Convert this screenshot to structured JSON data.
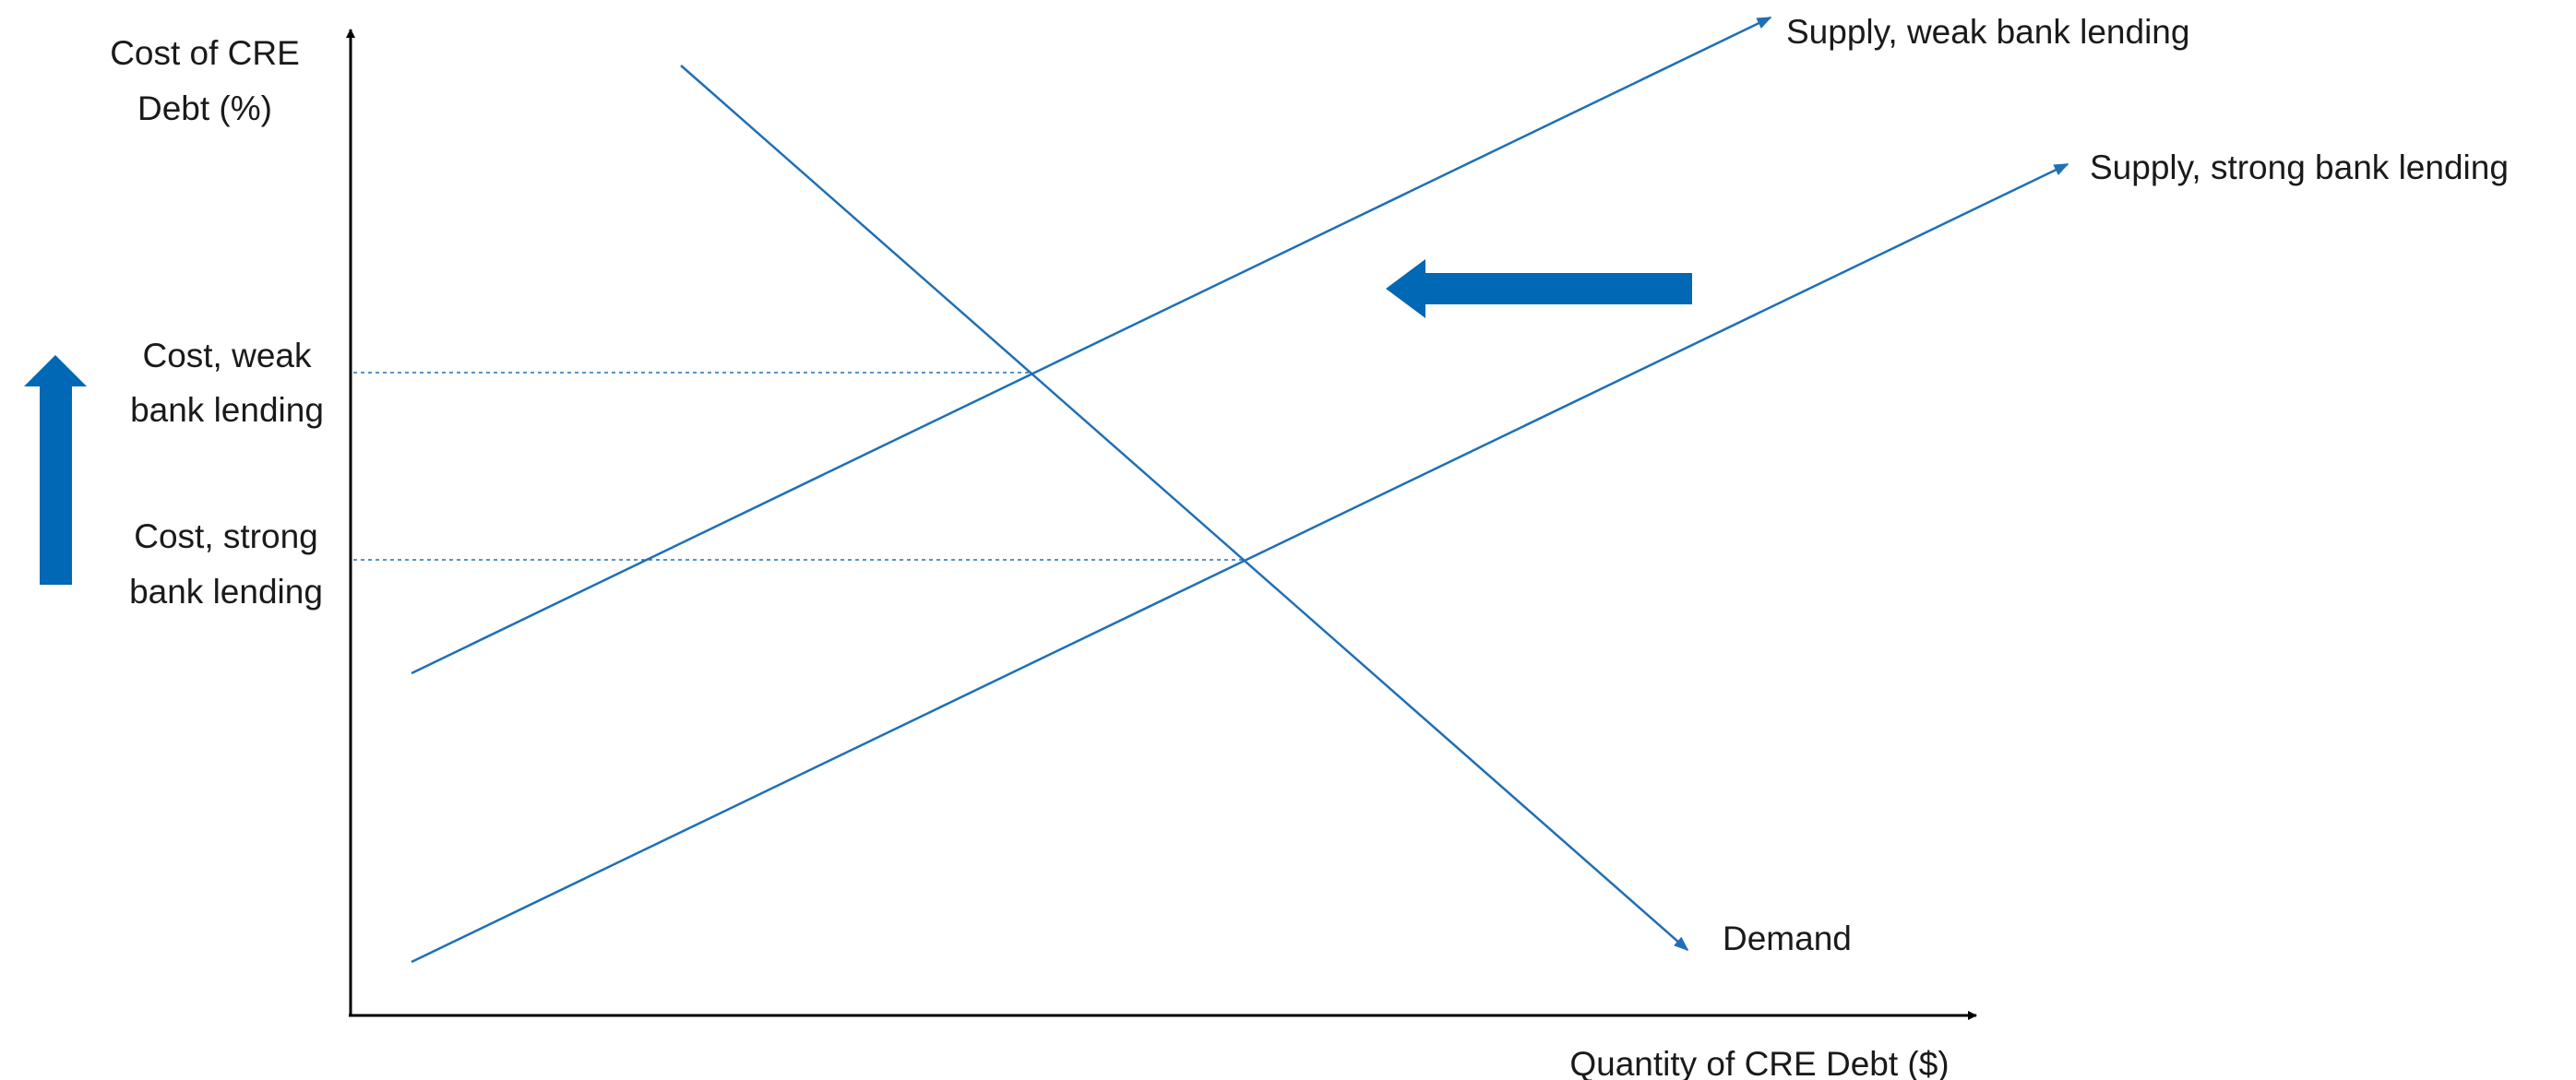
{
  "axes": {
    "y_label_line1": "Cost of CRE",
    "y_label_line2": "Debt (%)",
    "x_label": "Quantity of CRE Debt ($)"
  },
  "curves": {
    "supply_weak": "Supply, weak bank lending",
    "supply_strong": "Supply, strong bank lending",
    "demand": "Demand"
  },
  "levels": {
    "weak_line1": "Cost, weak",
    "weak_line2": "bank lending",
    "strong_line1": "Cost, strong",
    "strong_line2": "bank lending"
  },
  "colors": {
    "line": "#1f6fb5",
    "arrow": "#0068b4",
    "axis": "#000000",
    "text": "#1a1a1a"
  }
}
